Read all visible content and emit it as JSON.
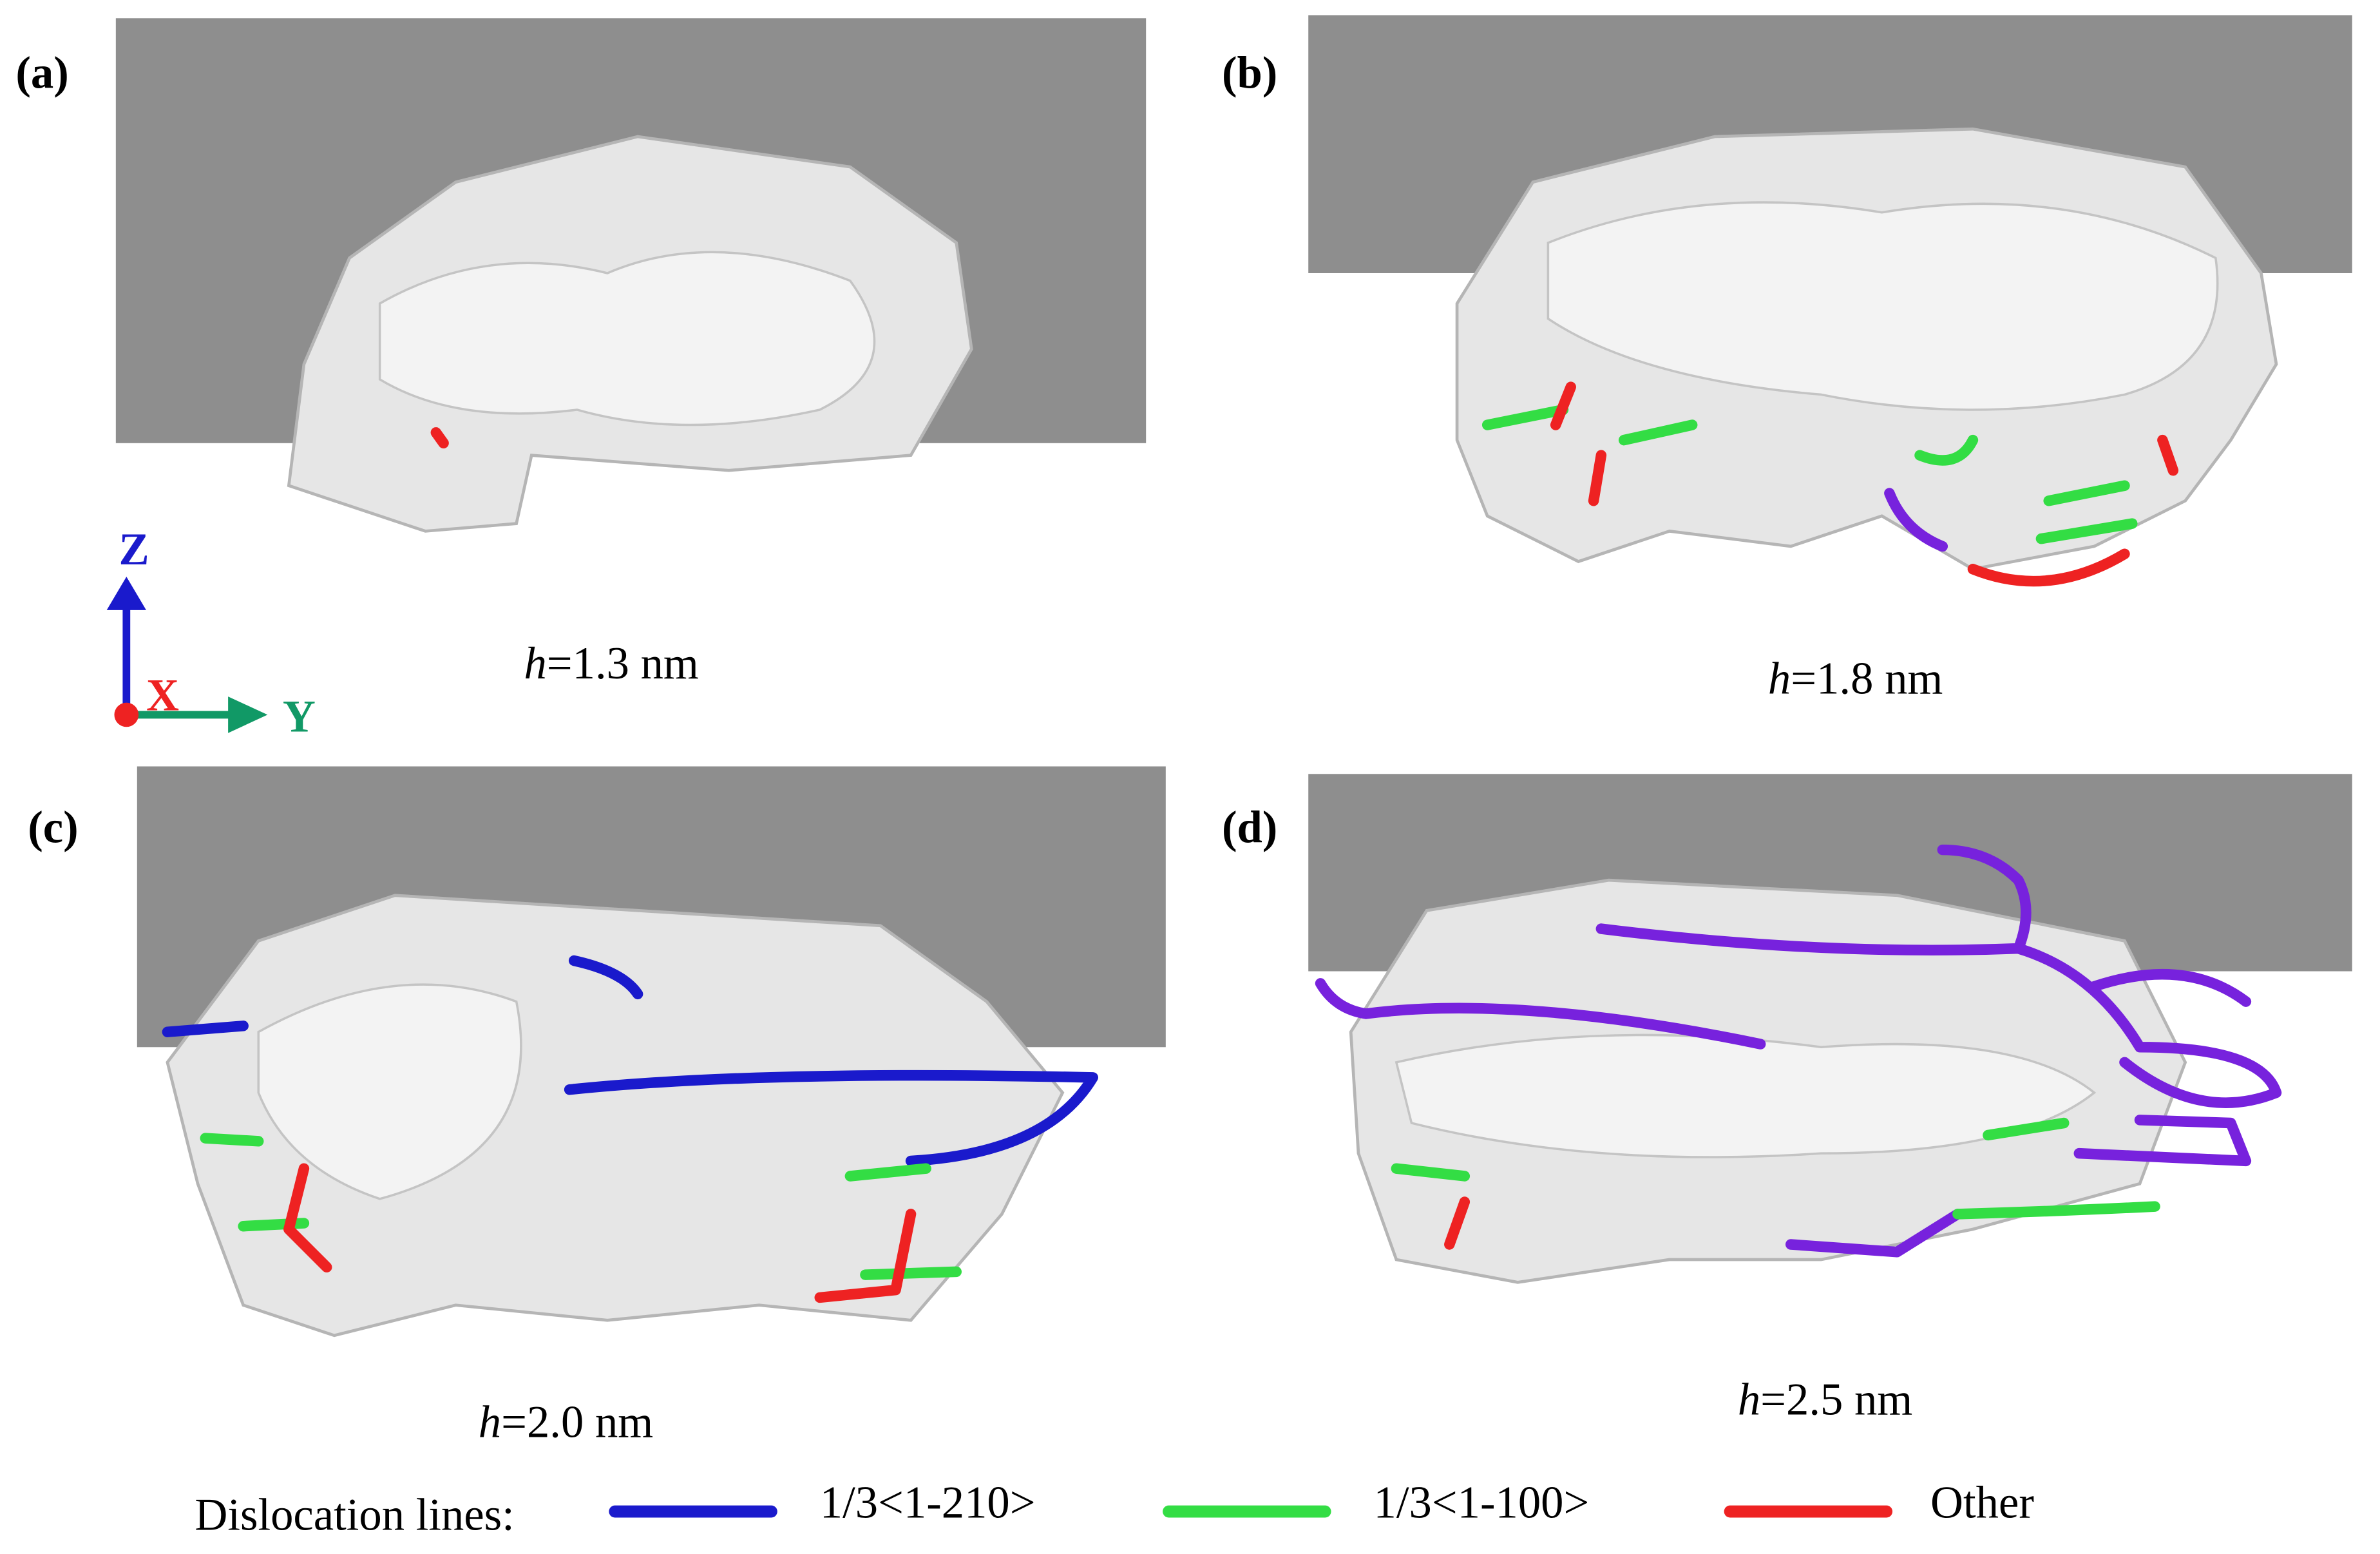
{
  "panels": [
    {
      "label": "(a)",
      "caption": {
        "var": "h",
        "text": "=1.3 nm"
      }
    },
    {
      "label": "(b)",
      "caption": {
        "var": "h",
        "text": "=1.8 nm"
      }
    },
    {
      "label": "(c)",
      "caption": {
        "var": "h",
        "text": "=2.0 nm"
      }
    },
    {
      "label": "(d)",
      "caption": {
        "var": "h",
        "text": "=2.5 nm"
      }
    }
  ],
  "axes": {
    "z": "Z",
    "x": "X",
    "y": "Y"
  },
  "legend": {
    "title": "Dislocation lines:",
    "entries": [
      {
        "name": "1/3<1-210>",
        "color": "#1a1acc"
      },
      {
        "name": "1/3<1-100>",
        "color": "#33dd44"
      },
      {
        "name": "Other",
        "color": "#ee2222"
      }
    ]
  }
}
